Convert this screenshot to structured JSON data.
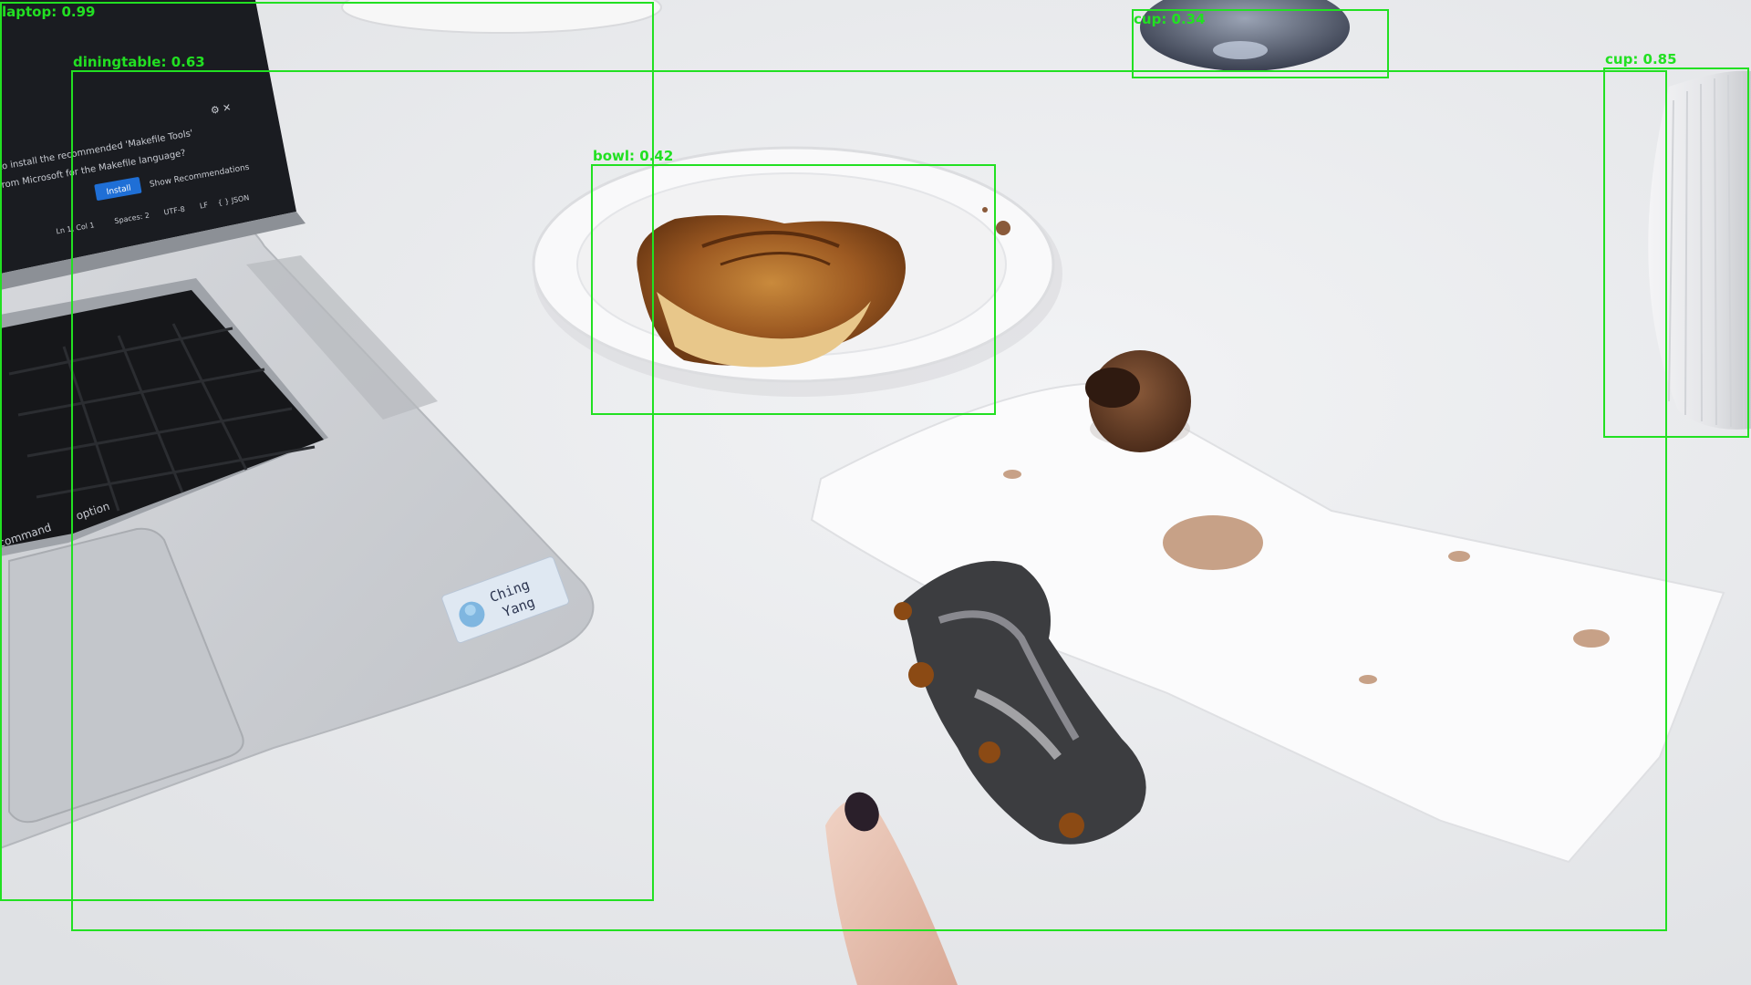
{
  "detections": [
    {
      "id": "laptop",
      "label": "laptop",
      "score": "0.99"
    },
    {
      "id": "diningtable",
      "label": "diningtable",
      "score": "0.63"
    },
    {
      "id": "bowl",
      "label": "bowl",
      "score": "0.42"
    },
    {
      "id": "cup-top",
      "label": "cup",
      "score": "0.34"
    },
    {
      "id": "cup-right",
      "label": "cup",
      "score": "0.85"
    }
  ],
  "laptop_screen": {
    "notification_line1": "to install the recommended 'Makefile Tools'",
    "notification_line2": "rom Microsoft for the Makefile language?",
    "install_button": "Install",
    "recommendations_button": "Show Recommendations",
    "status_ln_col": "Ln 1, Col 1",
    "status_spaces": "Spaces: 2",
    "status_encoding": "UTF-8",
    "status_eol": "LF",
    "status_language": "{ } JSON"
  },
  "keyboard": {
    "key_command": "command",
    "key_option": "option"
  },
  "sticker": {
    "line1": "Ching",
    "line2": "Yang"
  },
  "colors": {
    "detection_box": "#22e022",
    "table": "#ecedef",
    "laptop_body": "#c9ccd1",
    "install_button": "#1f6fd6"
  }
}
